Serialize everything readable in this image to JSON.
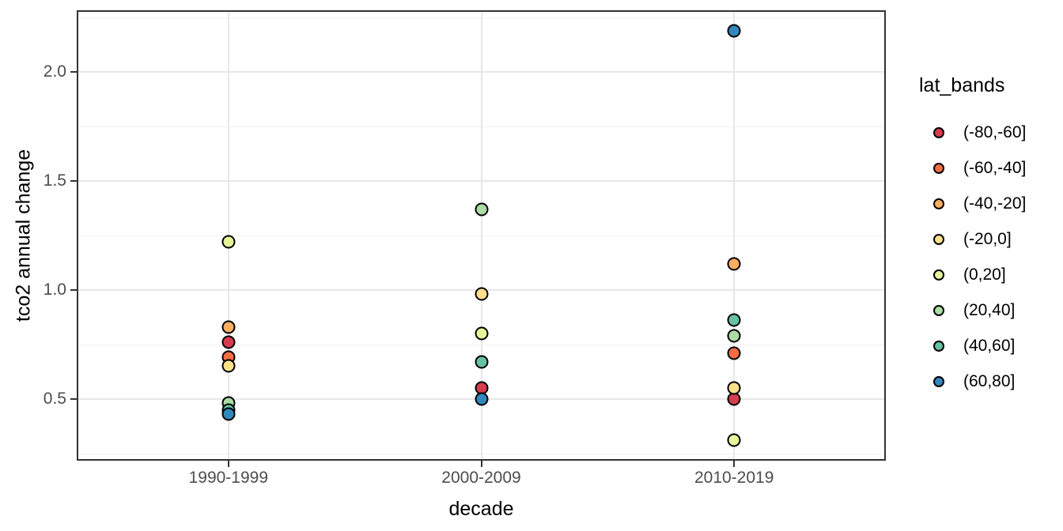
{
  "chart_data": {
    "type": "scatter",
    "title": "",
    "xlabel": "decade",
    "ylabel": "tco2 annual change",
    "categories": [
      "1990-1999",
      "2000-2009",
      "2010-2019"
    ],
    "x_domain": [
      0.4,
      3.6
    ],
    "ylim": [
      0.216,
      2.284
    ],
    "y_major_ticks": [
      0.5,
      1.0,
      1.5,
      2.0
    ],
    "y_tick_labels": [
      "0.5",
      "1.0",
      "1.5",
      "2.0"
    ],
    "y_minor_ticks": [
      0.25,
      0.75,
      1.25,
      1.75,
      2.25
    ],
    "grid": true,
    "legend": {
      "title": "lat_bands",
      "position": "right"
    },
    "point_stroke_color": "#000000",
    "series": [
      {
        "name": "(-80,-60]",
        "color": "#d53e4f",
        "points": [
          {
            "category": "1990-1999",
            "y": 0.76
          },
          {
            "category": "2000-2009",
            "y": 0.55
          },
          {
            "category": "2010-2019",
            "y": 0.5
          }
        ]
      },
      {
        "name": "(-60,-40]",
        "color": "#f46d43",
        "points": [
          {
            "category": "1990-1999",
            "y": 0.69
          },
          {
            "category": "2010-2019",
            "y": 0.71
          }
        ]
      },
      {
        "name": "(-40,-20]",
        "color": "#fdae61",
        "points": [
          {
            "category": "1990-1999",
            "y": 0.83
          },
          {
            "category": "2010-2019",
            "y": 1.12
          }
        ]
      },
      {
        "name": "(-20,0]",
        "color": "#fee08b",
        "points": [
          {
            "category": "1990-1999",
            "y": 0.65
          },
          {
            "category": "2000-2009",
            "y": 0.98
          },
          {
            "category": "2010-2019",
            "y": 0.55
          }
        ]
      },
      {
        "name": "(0,20]",
        "color": "#e6f598",
        "points": [
          {
            "category": "1990-1999",
            "y": 1.22
          },
          {
            "category": "2000-2009",
            "y": 0.8
          },
          {
            "category": "2010-2019",
            "y": 0.31
          }
        ]
      },
      {
        "name": "(20,40]",
        "color": "#abdda4",
        "points": [
          {
            "category": "1990-1999",
            "y": 0.48
          },
          {
            "category": "2000-2009",
            "y": 1.37
          },
          {
            "category": "2010-2019",
            "y": 0.79
          }
        ]
      },
      {
        "name": "(40,60]",
        "color": "#66c2a5",
        "points": [
          {
            "category": "1990-1999",
            "y": 0.45
          },
          {
            "category": "2000-2009",
            "y": 0.67
          },
          {
            "category": "2010-2019",
            "y": 0.86
          }
        ]
      },
      {
        "name": "(60,80]",
        "color": "#3288bd",
        "points": [
          {
            "category": "1990-1999",
            "y": 0.43
          },
          {
            "category": "2000-2009",
            "y": 0.5
          },
          {
            "category": "2010-2019",
            "y": 2.19
          }
        ]
      }
    ]
  }
}
